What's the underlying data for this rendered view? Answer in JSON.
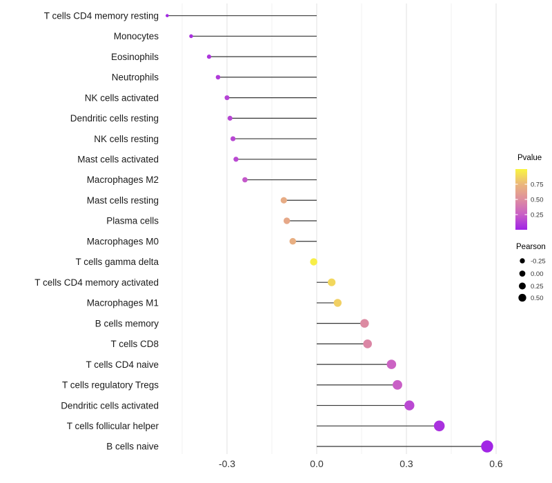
{
  "figure": {
    "background": "#ffffff"
  },
  "chart_data": {
    "type": "scatter",
    "variant": "horizontal-lollipop",
    "title": "",
    "xlabel": "",
    "ylabel": "",
    "xlim": [
      -0.51,
      0.62
    ],
    "grid": "vertical-only",
    "xticks": [
      {
        "value": -0.3,
        "label": "-0.3"
      },
      {
        "value": 0.0,
        "label": "0.0"
      },
      {
        "value": 0.3,
        "label": "0.3"
      },
      {
        "value": 0.6,
        "label": "0.6"
      }
    ],
    "minor_gridlines": [
      -0.45,
      -0.15,
      0.15,
      0.45
    ],
    "points": [
      {
        "label": "T cells CD4 memory resting",
        "pearson": -0.5,
        "pvalue": 0.02
      },
      {
        "label": "Monocytes",
        "pearson": -0.42,
        "pvalue": 0.06
      },
      {
        "label": "Eosinophils",
        "pearson": -0.36,
        "pvalue": 0.08
      },
      {
        "label": "Neutrophils",
        "pearson": -0.33,
        "pvalue": 0.1
      },
      {
        "label": "NK cells activated",
        "pearson": -0.3,
        "pvalue": 0.13
      },
      {
        "label": "Dendritic cells resting",
        "pearson": -0.29,
        "pvalue": 0.14
      },
      {
        "label": "NK cells resting",
        "pearson": -0.28,
        "pvalue": 0.15
      },
      {
        "label": "Mast cells activated",
        "pearson": -0.27,
        "pvalue": 0.16
      },
      {
        "label": "Macrophages M2",
        "pearson": -0.24,
        "pvalue": 0.22
      },
      {
        "label": "Mast cells resting",
        "pearson": -0.11,
        "pvalue": 0.68
      },
      {
        "label": "Plasma cells",
        "pearson": -0.1,
        "pvalue": 0.66
      },
      {
        "label": "Macrophages M0",
        "pearson": -0.08,
        "pvalue": 0.7
      },
      {
        "label": "T cells gamma delta",
        "pearson": -0.01,
        "pvalue": 0.97
      },
      {
        "label": "T cells CD4 memory activated",
        "pearson": 0.05,
        "pvalue": 0.88
      },
      {
        "label": "Macrophages M1",
        "pearson": 0.07,
        "pvalue": 0.85
      },
      {
        "label": "B cells memory",
        "pearson": 0.16,
        "pvalue": 0.48
      },
      {
        "label": "T cells CD8",
        "pearson": 0.17,
        "pvalue": 0.46
      },
      {
        "label": "T cells CD4 naive",
        "pearson": 0.25,
        "pvalue": 0.27
      },
      {
        "label": "T cells regulatory  Tregs",
        "pearson": 0.27,
        "pvalue": 0.25
      },
      {
        "label": "Dendritic cells activated",
        "pearson": 0.31,
        "pvalue": 0.16
      },
      {
        "label": "T cells follicular helper",
        "pearson": 0.41,
        "pvalue": 0.06
      },
      {
        "label": "B cells naive",
        "pearson": 0.57,
        "pvalue": 0.01
      }
    ],
    "legends": {
      "pvalue": {
        "title": "Pvalue",
        "ticks": [
          {
            "value": 0.75,
            "label": "0.75"
          },
          {
            "value": 0.5,
            "label": "0.50"
          },
          {
            "value": 0.25,
            "label": "0.25"
          }
        ],
        "gradient_stops": [
          {
            "t": 0.0,
            "color": "#9F23E6"
          },
          {
            "t": 0.25,
            "color": "#C95FC6"
          },
          {
            "t": 0.5,
            "color": "#DE8E9F"
          },
          {
            "t": 0.75,
            "color": "#EBB77B"
          },
          {
            "t": 1.0,
            "color": "#F9F541"
          }
        ]
      },
      "pearson": {
        "title": "Pearson",
        "items": [
          {
            "value": -0.25,
            "label": "-0.25"
          },
          {
            "value": 0.0,
            "label": "0.00"
          },
          {
            "value": 0.25,
            "label": "0.25"
          },
          {
            "value": 0.5,
            "label": "0.50"
          }
        ]
      }
    },
    "styles": {
      "stem_color": "#343434",
      "grid_major_color": "#e4e4e4",
      "grid_minor_color": "#f0f0f0",
      "legend_dot_color": "#000000"
    }
  }
}
